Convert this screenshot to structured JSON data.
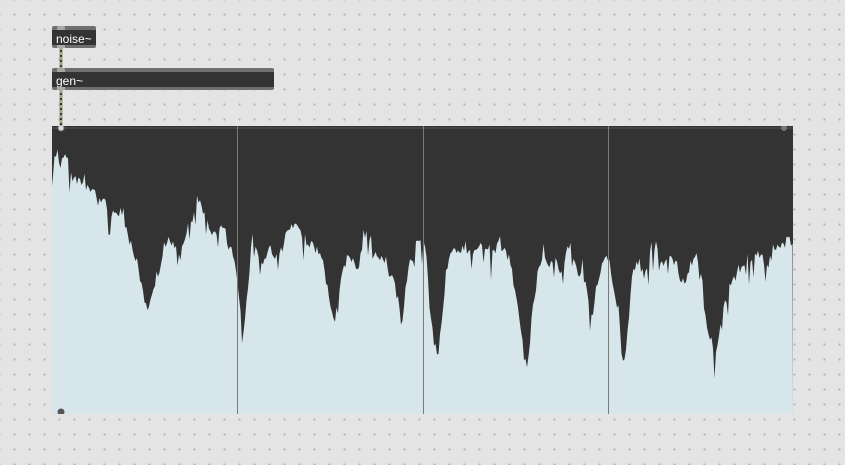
{
  "patcher": {
    "objects": [
      {
        "id": "noise",
        "label": "noise~"
      },
      {
        "id": "gen",
        "label": "gen~"
      }
    ],
    "display": {
      "type": "waveform-scope",
      "divisions": 4,
      "colors": {
        "background": "#333333",
        "fill": "#d6e6ea",
        "divider": "#7a7a7a",
        "handle": "#777777"
      }
    },
    "cords": [
      {
        "from": "noise",
        "to": "gen",
        "color": "#c9d27a"
      },
      {
        "from": "gen",
        "to": "waveform-scope",
        "color": "#c9d27a"
      }
    ]
  }
}
